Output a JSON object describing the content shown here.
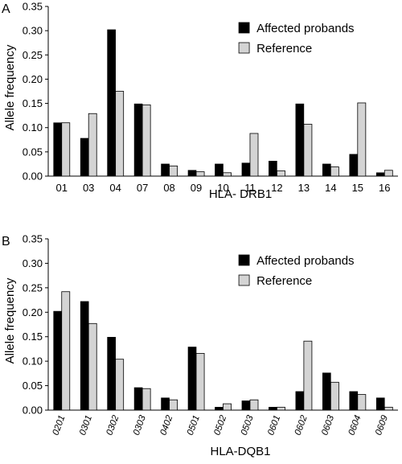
{
  "panels": [
    {
      "letter": "A",
      "xlabel": "HLA- DRB1",
      "ylabel": "Allele frequency"
    },
    {
      "letter": "B",
      "xlabel": "HLA-DQB1",
      "ylabel": "Allele frequency"
    }
  ],
  "colors": {
    "affected": "#000000",
    "reference": "#d4d4d4",
    "reference_edge": "#000000"
  },
  "chart_data": [
    {
      "type": "bar",
      "panel_label": "A",
      "xlabel": "HLA- DRB1",
      "ylabel": "Allele frequency",
      "ylim": [
        0,
        0.35
      ],
      "yticks": [
        "0.00",
        "0.05",
        "0.10",
        "0.15",
        "0.20",
        "0.25",
        "0.30",
        "0.35"
      ],
      "grid": false,
      "legend_position": "top-right",
      "categories": [
        "01",
        "03",
        "04",
        "07",
        "08",
        "09",
        "10",
        "11",
        "12",
        "13",
        "14",
        "15",
        "16"
      ],
      "series": [
        {
          "name": "Affected probands",
          "values": [
            0.11,
            0.078,
            0.302,
            0.149,
            0.025,
            0.012,
            0.025,
            0.027,
            0.031,
            0.149,
            0.025,
            0.045,
            0.007
          ]
        },
        {
          "name": "Reference",
          "values": [
            0.11,
            0.129,
            0.175,
            0.147,
            0.021,
            0.009,
            0.007,
            0.088,
            0.011,
            0.107,
            0.019,
            0.151,
            0.012
          ]
        }
      ]
    },
    {
      "type": "bar",
      "panel_label": "B",
      "xlabel": "HLA-DQB1",
      "ylabel": "Allele frequency",
      "ylim": [
        0,
        0.35
      ],
      "yticks": [
        "0.00",
        "0.05",
        "0.10",
        "0.15",
        "0.20",
        "0.25",
        "0.30",
        "0.35"
      ],
      "grid": false,
      "legend_position": "top-right",
      "categories": [
        "0201",
        "0301",
        "0302",
        "0303",
        "0402",
        "0501",
        "0502",
        "0503",
        "0601",
        "0602",
        "0603",
        "0604",
        "0609"
      ],
      "series": [
        {
          "name": "Affected probands",
          "values": [
            0.202,
            0.222,
            0.149,
            0.046,
            0.025,
            0.129,
            0.006,
            0.019,
            0.006,
            0.038,
            0.076,
            0.038,
            0.025
          ]
        },
        {
          "name": "Reference",
          "values": [
            0.242,
            0.177,
            0.104,
            0.044,
            0.021,
            0.116,
            0.013,
            0.021,
            0.006,
            0.141,
            0.057,
            0.032,
            0.006
          ]
        }
      ]
    }
  ]
}
